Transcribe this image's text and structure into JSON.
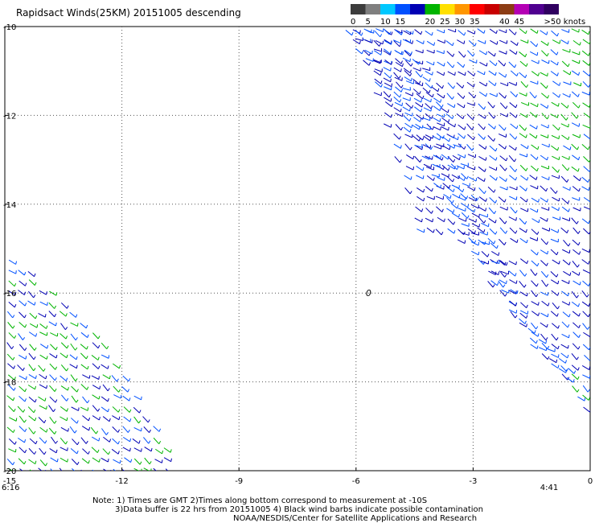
{
  "chart_data": {
    "type": "scatter",
    "title": "Rapidsact Winds(25KM) 20151005 descending",
    "xlim": [
      -15,
      0
    ],
    "ylim": [
      -20,
      -10
    ],
    "x_ticks": [
      -15,
      -12,
      -9,
      -6,
      -3,
      0
    ],
    "x_tick_labels": [
      "-15",
      "-12",
      "-9",
      "-6",
      "-3",
      "0"
    ],
    "y_ticks": [
      -10,
      -12,
      -14,
      -16,
      -18,
      -20
    ],
    "y_tick_labels": [
      "-10",
      "-12",
      "-14",
      "-16",
      "-18",
      "-20"
    ],
    "grid": true,
    "grid_style": "dotted",
    "legend": {
      "placement": "top-right",
      "bins": [
        {
          "label": "0",
          "color": "#3c3c3c"
        },
        {
          "label": "5",
          "color": "#7f7f7f"
        },
        {
          "label": "10",
          "color": "#00c8ff"
        },
        {
          "label": "15",
          "color": "#0050ff"
        },
        {
          "label": "",
          "color": "#0000b4"
        },
        {
          "label": "20",
          "color": "#00b400"
        },
        {
          "label": "25",
          "color": "#ffe000"
        },
        {
          "label": "30",
          "color": "#ff9600"
        },
        {
          "label": "35",
          "color": "#ff0000"
        },
        {
          "label": "",
          "color": "#c80000"
        },
        {
          "label": "40",
          "color": "#8c3c14"
        },
        {
          "label": "45",
          "color": "#b400b4"
        },
        {
          "label": "",
          "color": "#500090"
        },
        {
          "label": ">50 knots",
          "color": "#300060"
        }
      ]
    },
    "pass_times": [
      {
        "label": "6:16",
        "x": -15
      },
      {
        "label": "4:41",
        "x": -1.2
      }
    ],
    "center_marker": {
      "label": "0",
      "x": -5.75,
      "y": -16
    },
    "swaths": [
      {
        "name": "east-main",
        "points": [
          [
            -6.2,
            -10
          ],
          [
            -4.8,
            -10
          ],
          [
            -0.6,
            -10
          ],
          [
            0,
            -10
          ],
          [
            0,
            -11.0
          ],
          [
            -0.2,
            -15.2
          ],
          [
            -4.4,
            -14.7
          ],
          [
            -5.2,
            -12.5
          ]
        ],
        "direction_deg": 35
      },
      {
        "name": "east-lower",
        "points": [
          [
            -0.2,
            -15.2
          ],
          [
            0,
            -15.8
          ],
          [
            0,
            -16.7
          ],
          [
            0,
            -17.5
          ],
          [
            -0.1,
            -18.8
          ],
          [
            -0.2,
            -18.5
          ],
          [
            -1.5,
            -17.2
          ],
          [
            -2.6,
            -15.8
          ],
          [
            -3.1,
            -15.1
          ]
        ],
        "direction_deg": 40
      },
      {
        "name": "east-thin",
        "points": [
          [
            -6.4,
            -10
          ],
          [
            -5.6,
            -10
          ],
          [
            -4.8,
            -10
          ],
          [
            -3.7,
            -12.0
          ],
          [
            -2.6,
            -14.7
          ],
          [
            -1.6,
            -16.6
          ],
          [
            -0.5,
            -17.6
          ],
          [
            -0.1,
            -18.8
          ],
          [
            -0.6,
            -18.0
          ],
          [
            -1.7,
            -16.9
          ],
          [
            -3.1,
            -15.0
          ],
          [
            -4.6,
            -12.6
          ]
        ],
        "direction_deg": 30
      },
      {
        "name": "southwest",
        "points": [
          [
            -15,
            -15.0
          ],
          [
            -12.5,
            -17.1
          ],
          [
            -11.8,
            -18.0
          ],
          [
            -10.6,
            -19.8
          ],
          [
            -10.9,
            -20
          ],
          [
            -15,
            -20
          ]
        ],
        "direction_deg": 40
      }
    ],
    "colors": {
      "blue": "#0000b4",
      "mid_blue": "#0050ff",
      "green": "#00b400",
      "grid": "#555555"
    }
  },
  "notes": [
    "Note: 1) Times are GMT 2)Times along bottom correspond to measurement at -10S",
    "3)Data buffer is 22 hrs from 20151005 4) Black wind barbs indicate possible contamination",
    "NOAA/NESDIS/Center for Satellite Applications and Research"
  ]
}
